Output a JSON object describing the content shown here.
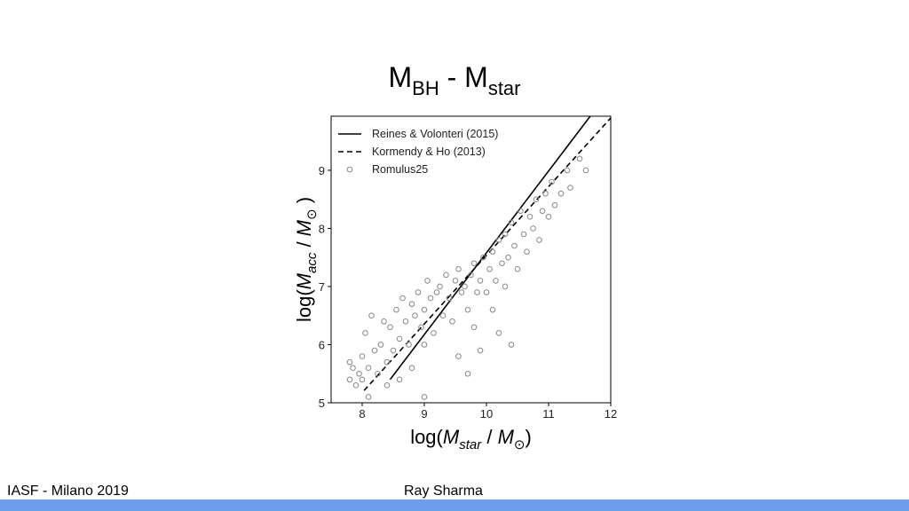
{
  "slide": {
    "title_parts": [
      "M",
      "BH",
      " - M",
      "star"
    ],
    "footer_left": "IASF - Milano 2019",
    "footer_right": "Ray Sharma"
  },
  "chart_data": {
    "type": "scatter",
    "xlabel_parts": [
      {
        "text": "log("
      },
      {
        "text": "M",
        "italic": true
      },
      {
        "text": "star",
        "italic": true,
        "sub": true
      },
      {
        "text": " / "
      },
      {
        "text": "M",
        "italic": true
      },
      {
        "text": "⊙",
        "sub": true
      },
      {
        "text": ")"
      }
    ],
    "ylabel_parts": [
      {
        "text": "log("
      },
      {
        "text": "M",
        "italic": true
      },
      {
        "text": "acc",
        "italic": true,
        "sub": true
      },
      {
        "text": " / "
      },
      {
        "text": "M",
        "italic": true
      },
      {
        "text": "⊙",
        "sub": true
      },
      {
        "text": " )"
      }
    ],
    "xlim": [
      7.5,
      12
    ],
    "ylim": [
      5,
      9.93
    ],
    "xticks": [
      8,
      9,
      10,
      11,
      12
    ],
    "yticks": [
      5,
      6,
      7,
      8,
      9
    ],
    "legend": "upper left",
    "series": [
      {
        "name": "Reines & Volonteri (2015)",
        "color": "#000000",
        "style": "solid",
        "x": [
          8.45,
          11.67
        ],
        "values": [
          5.4,
          9.93
        ]
      },
      {
        "name": "Kormendy & Ho (2013)",
        "color": "#000000",
        "style": "dashed",
        "x": [
          8.03,
          12
        ],
        "values": [
          5.21,
          9.9
        ]
      },
      {
        "name": "Romulus25",
        "color": "#888888",
        "marker": "circle",
        "x": [
          7.8,
          7.8,
          7.85,
          7.9,
          7.95,
          8.0,
          8.0,
          8.05,
          8.1,
          8.1,
          8.15,
          8.2,
          8.25,
          8.3,
          8.35,
          8.4,
          8.4,
          8.45,
          8.5,
          8.55,
          8.6,
          8.6,
          8.65,
          8.7,
          8.75,
          8.8,
          8.8,
          8.85,
          8.9,
          8.95,
          9.0,
          9.0,
          9.05,
          9.1,
          9.15,
          9.2,
          9.25,
          9.3,
          9.35,
          9.4,
          9.45,
          9.5,
          9.55,
          9.6,
          9.65,
          9.7,
          9.75,
          9.8,
          9.8,
          9.85,
          9.9,
          9.9,
          9.95,
          10.0,
          10.05,
          10.1,
          10.1,
          10.15,
          10.2,
          10.2,
          10.25,
          10.3,
          10.3,
          10.35,
          10.4,
          10.4,
          10.45,
          10.5,
          10.55,
          10.6,
          10.65,
          10.7,
          10.75,
          10.8,
          10.85,
          10.9,
          10.95,
          11.0,
          11.05,
          11.1,
          11.2,
          11.3,
          11.35,
          11.5,
          11.6,
          9.0,
          9.55,
          9.7
        ],
        "values": [
          5.7,
          5.4,
          5.6,
          5.3,
          5.5,
          5.8,
          5.4,
          6.2,
          5.6,
          5.1,
          6.5,
          5.9,
          5.5,
          6.0,
          6.4,
          5.7,
          5.3,
          6.3,
          5.9,
          6.6,
          6.1,
          5.4,
          6.8,
          6.4,
          6.0,
          6.7,
          5.6,
          6.5,
          6.9,
          6.3,
          6.6,
          6.0,
          7.1,
          6.8,
          6.2,
          6.9,
          7.0,
          6.5,
          7.2,
          6.8,
          6.4,
          7.1,
          7.3,
          6.9,
          7.0,
          6.6,
          7.2,
          6.3,
          7.4,
          6.9,
          5.9,
          7.1,
          7.5,
          6.9,
          7.3,
          7.6,
          6.6,
          7.1,
          7.8,
          6.2,
          7.4,
          7.9,
          7.0,
          7.5,
          8.1,
          6.0,
          7.7,
          7.3,
          8.3,
          7.9,
          7.6,
          8.2,
          8.0,
          8.5,
          7.8,
          8.3,
          8.6,
          8.2,
          8.8,
          8.4,
          8.6,
          9.0,
          8.7,
          9.2,
          9.0,
          5.1,
          5.8,
          5.5
        ]
      }
    ]
  }
}
